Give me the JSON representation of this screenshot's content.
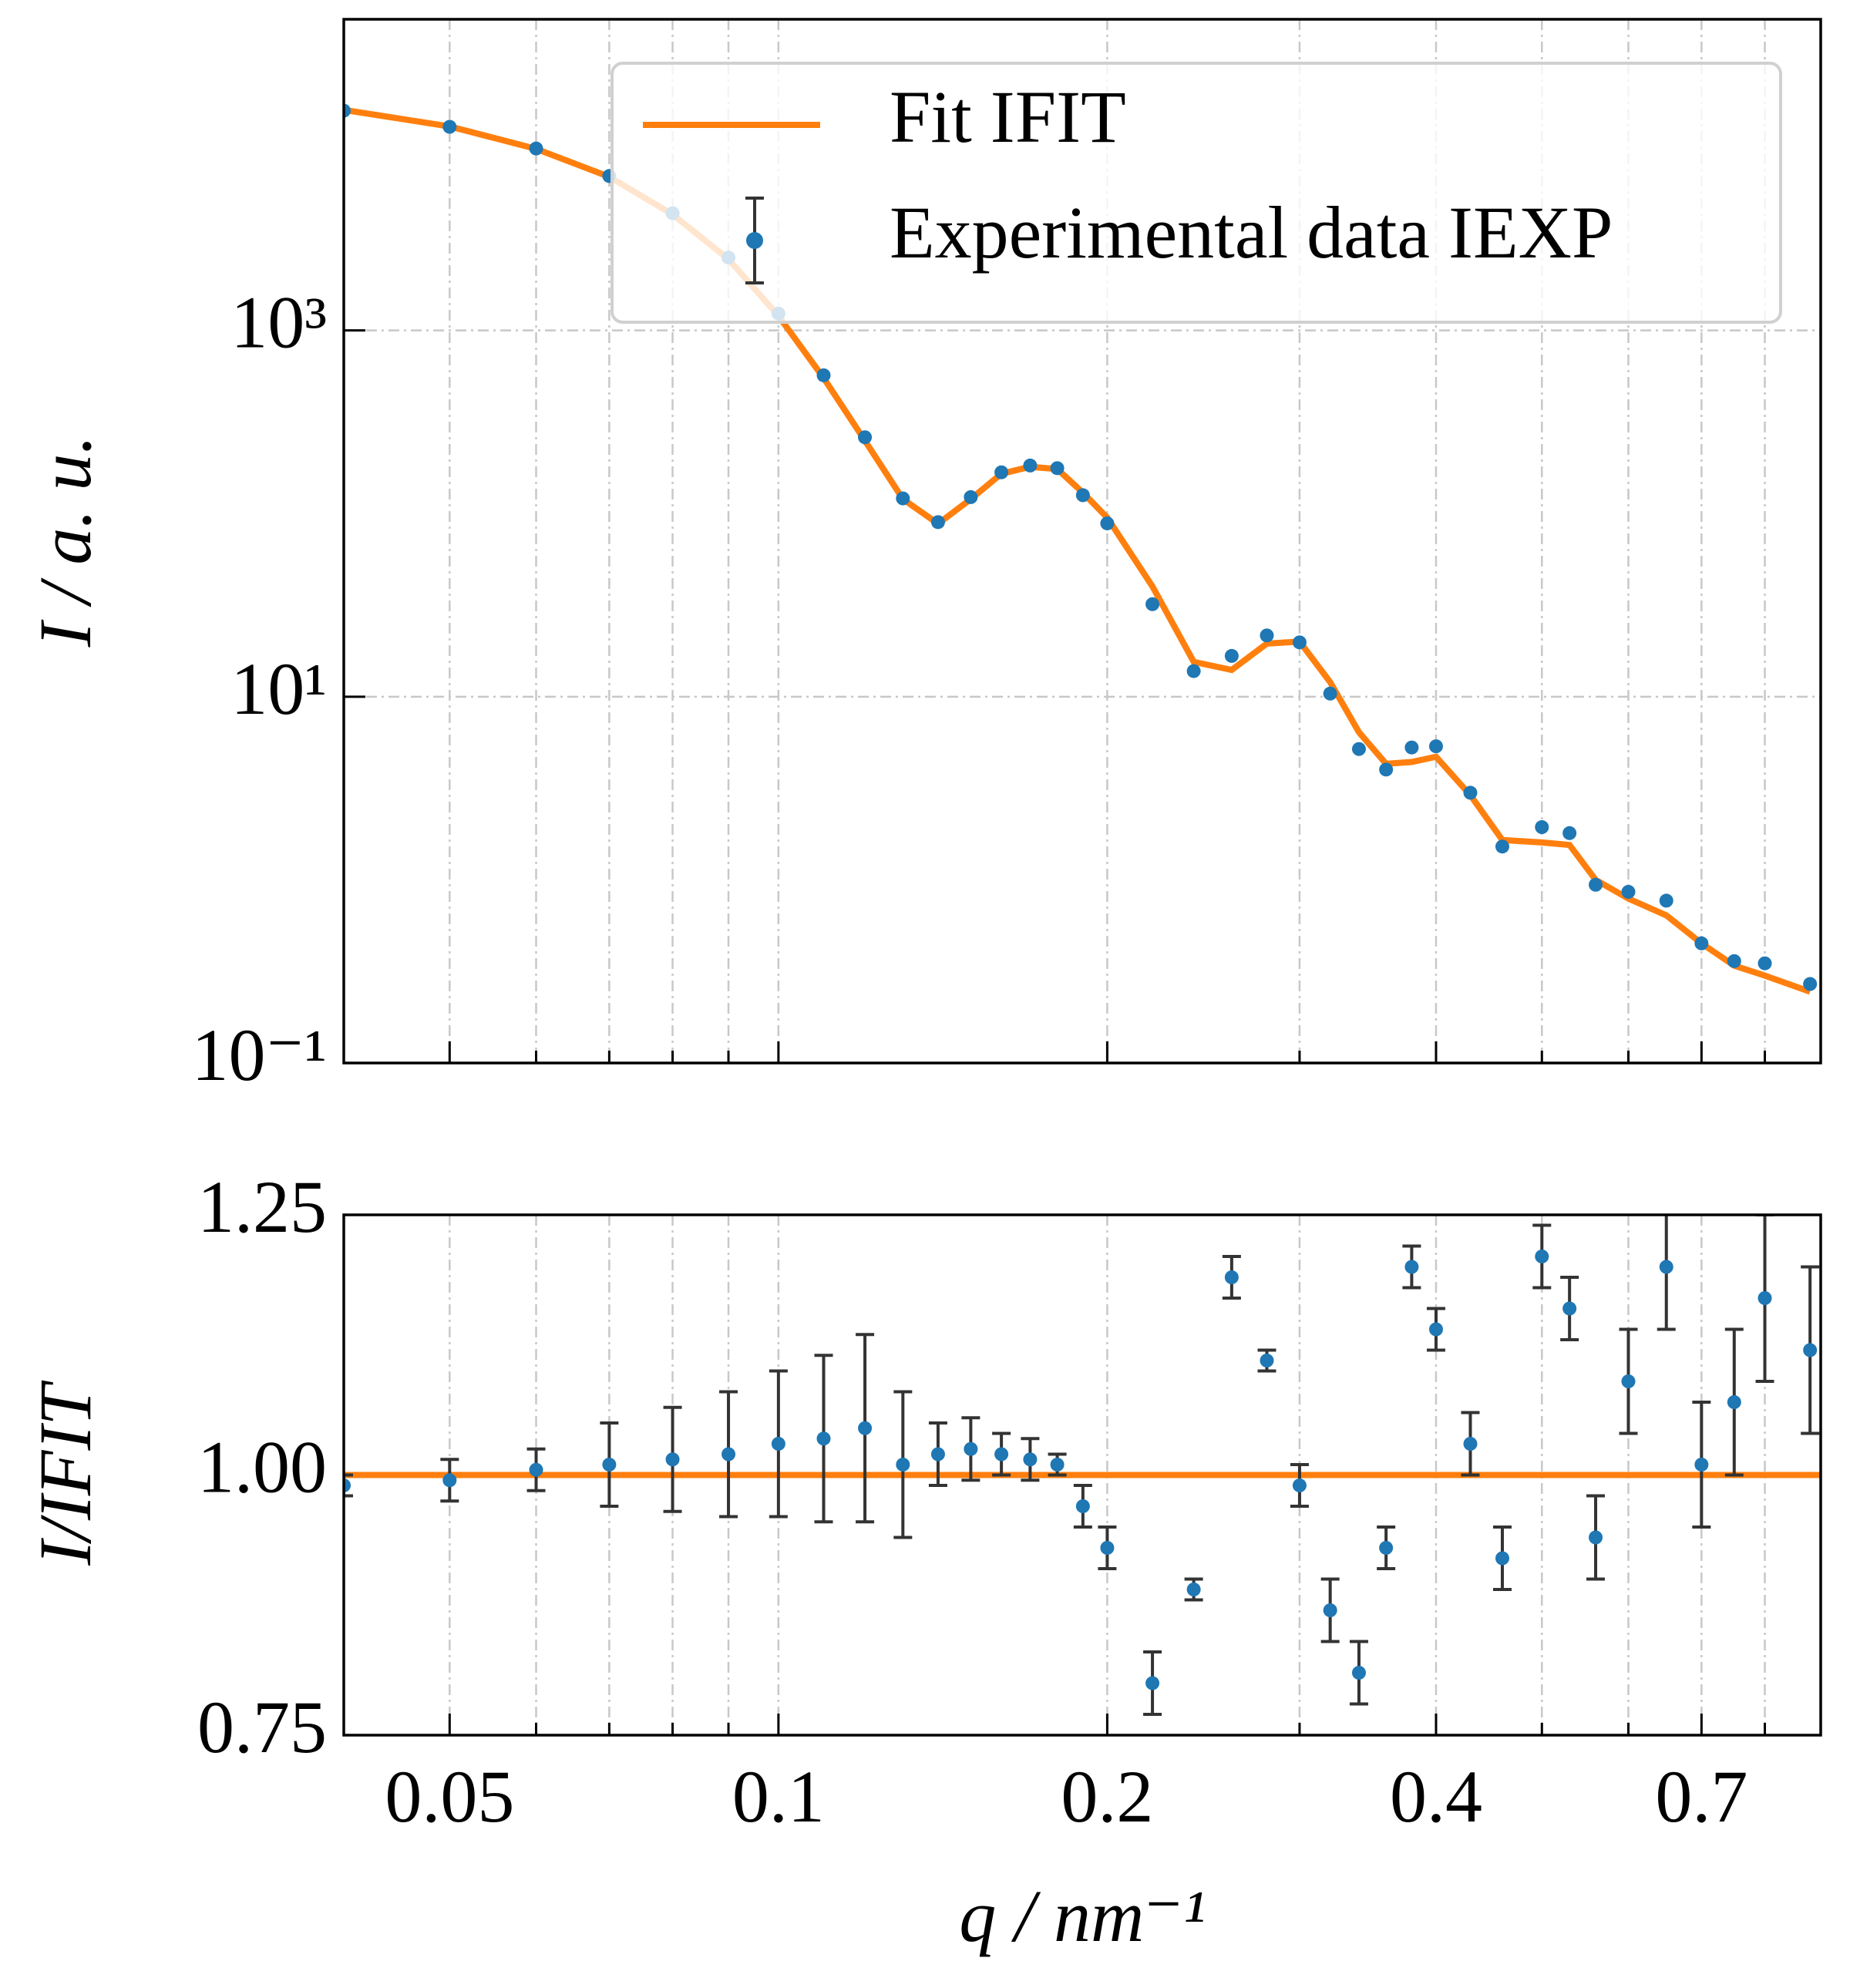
{
  "chart_data": [
    {
      "type": "line",
      "ylabel": "I / a. u.",
      "log_x": true,
      "log_y": true,
      "grid": true,
      "legend": "upper right",
      "xlim": [
        0.04,
        0.9
      ],
      "ylim": [
        0.1,
        50000
      ],
      "yticks": [
        {
          "value": 0.1,
          "label": "10⁻¹"
        },
        {
          "value": 10,
          "label": "10¹"
        },
        {
          "value": 1000,
          "label": "10³"
        }
      ],
      "x": [
        0.04,
        0.05,
        0.06,
        0.07,
        0.08,
        0.09,
        0.1,
        0.11,
        0.12,
        0.13,
        0.14,
        0.15,
        0.16,
        0.17,
        0.18,
        0.19,
        0.2,
        0.22,
        0.24,
        0.26,
        0.28,
        0.3,
        0.32,
        0.34,
        0.36,
        0.38,
        0.4,
        0.43,
        0.46,
        0.5,
        0.53,
        0.56,
        0.6,
        0.65,
        0.7,
        0.75,
        0.8,
        0.88
      ],
      "series": [
        {
          "name": "Fit IFIT",
          "style": "line",
          "color": "#ff7f0e",
          "values": [
            16000,
            13000,
            9800,
            6900,
            4300,
            2450,
            1200,
            550,
            250,
            120,
            88,
            120,
            165,
            180,
            175,
            130,
            95,
            40,
            15.5,
            14,
            19.5,
            20,
            12,
            6.4,
            4.3,
            4.4,
            4.7,
            2.9,
            1.65,
            1.6,
            1.55,
            1.0,
            0.79,
            0.64,
            0.45,
            0.34,
            0.3,
            0.245
          ]
        },
        {
          "name": "Experimental data IEXP",
          "style": "points",
          "color": "#1f77b4",
          "error_color": "#333333",
          "values": [
            15840,
            12935,
            9849,
            6969,
            4365,
            2499,
            1236,
            569,
            261,
            121,
            89.8,
            123,
            168,
            183,
            177,
            126,
            88.4,
            32,
            13.8,
            16.7,
            21.6,
            19.8,
            10.4,
            5.18,
            4.0,
            5.28,
            5.36,
            2.99,
            1.52,
            1.94,
            1.8,
            0.94,
            0.86,
            0.77,
            0.45,
            0.36,
            0.35,
            0.27
          ]
        }
      ]
    },
    {
      "type": "line",
      "ylabel": "I/IFIT",
      "xlabel": "q / nm⁻¹",
      "log_x": true,
      "log_y": false,
      "grid": true,
      "xlim": [
        0.04,
        0.9
      ],
      "ylim": [
        0.75,
        1.25
      ],
      "xticks": [
        0.05,
        0.1,
        0.2,
        0.4,
        0.7
      ],
      "xminorticks": [
        0.06,
        0.07,
        0.08,
        0.09,
        0.3,
        0.5,
        0.6,
        0.8
      ],
      "yticks": [
        0.75,
        {
          "value": 1,
          "label": "1.00"
        },
        1.25
      ],
      "x": [
        0.04,
        0.05,
        0.06,
        0.07,
        0.08,
        0.09,
        0.1,
        0.11,
        0.12,
        0.13,
        0.14,
        0.15,
        0.16,
        0.17,
        0.18,
        0.19,
        0.2,
        0.22,
        0.24,
        0.26,
        0.28,
        0.3,
        0.32,
        0.34,
        0.36,
        0.38,
        0.4,
        0.43,
        0.46,
        0.5,
        0.53,
        0.56,
        0.6,
        0.65,
        0.7,
        0.75,
        0.8,
        0.88
      ],
      "series": [
        {
          "style": "line",
          "color": "#ff7f0e",
          "x": [
            0.04,
            0.9
          ],
          "values": [
            1,
            1
          ]
        },
        {
          "style": "points",
          "color": "#1f77b4",
          "error_color": "#333333",
          "values": [
            0.99,
            0.995,
            1.005,
            1.01,
            1.015,
            1.02,
            1.03,
            1.035,
            1.045,
            1.01,
            1.02,
            1.025,
            1.02,
            1.015,
            1.01,
            0.97,
            0.93,
            0.8,
            0.89,
            1.19,
            1.11,
            0.99,
            0.87,
            0.81,
            0.93,
            1.2,
            1.14,
            1.03,
            0.92,
            1.21,
            1.16,
            0.94,
            1.09,
            1.2,
            1.01,
            1.07,
            1.17,
            1.12
          ],
          "errors": [
            0.01,
            0.02,
            0.02,
            0.04,
            0.05,
            0.06,
            0.07,
            0.08,
            0.09,
            0.07,
            0.03,
            0.03,
            0.02,
            0.02,
            0.01,
            0.02,
            0.02,
            0.03,
            0.01,
            0.02,
            0.01,
            0.02,
            0.03,
            0.03,
            0.02,
            0.02,
            0.02,
            0.03,
            0.03,
            0.03,
            0.03,
            0.04,
            0.05,
            0.06,
            0.06,
            0.07,
            0.08,
            0.08
          ]
        }
      ]
    }
  ]
}
